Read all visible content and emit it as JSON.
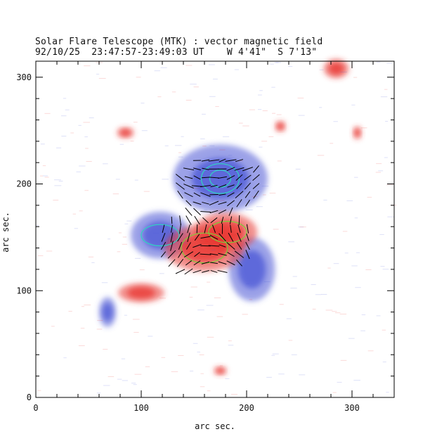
{
  "header": {
    "title": "Solar Flare Telescope (MTK) : vector magnetic field",
    "subtitle": "92/10/25  23:47:57-23:49:03 UT    W 4'41\"  S 7'13\""
  },
  "colors": {
    "positive": "#e8332f",
    "negative": "#4a57d6",
    "contour_positive": "#7ccf3a",
    "contour_negative": "#2fd4c0",
    "vectors": "#000000"
  },
  "chart_data": {
    "type": "heatmap",
    "title": "Solar Flare Telescope (MTK) : vector magnetic field",
    "xlabel": "arc sec.",
    "ylabel": "arc sec.",
    "xlim": [
      0,
      340
    ],
    "ylim": [
      0,
      315
    ],
    "x_ticks": [
      "0",
      "100",
      "200",
      "300"
    ],
    "y_ticks": [
      "0",
      "100",
      "200",
      "300"
    ],
    "regions": [
      {
        "polarity": "negative",
        "cx": 175,
        "cy": 205,
        "rx": 45,
        "ry": 32
      },
      {
        "polarity": "negative",
        "cx": 118,
        "cy": 152,
        "rx": 28,
        "ry": 22
      },
      {
        "polarity": "negative",
        "cx": 205,
        "cy": 120,
        "rx": 22,
        "ry": 30
      },
      {
        "polarity": "negative",
        "cx": 68,
        "cy": 80,
        "rx": 8,
        "ry": 14
      },
      {
        "polarity": "positive",
        "cx": 160,
        "cy": 140,
        "rx": 38,
        "ry": 22
      },
      {
        "polarity": "positive",
        "cx": 180,
        "cy": 155,
        "rx": 30,
        "ry": 18
      },
      {
        "polarity": "positive",
        "cx": 100,
        "cy": 98,
        "rx": 22,
        "ry": 9
      },
      {
        "polarity": "positive",
        "cx": 85,
        "cy": 248,
        "rx": 8,
        "ry": 5
      },
      {
        "polarity": "positive",
        "cx": 285,
        "cy": 308,
        "rx": 12,
        "ry": 9
      },
      {
        "polarity": "positive",
        "cx": 232,
        "cy": 254,
        "rx": 5,
        "ry": 5
      },
      {
        "polarity": "positive",
        "cx": 305,
        "cy": 248,
        "rx": 4,
        "ry": 6
      },
      {
        "polarity": "positive",
        "cx": 175,
        "cy": 25,
        "rx": 6,
        "ry": 4
      }
    ]
  }
}
